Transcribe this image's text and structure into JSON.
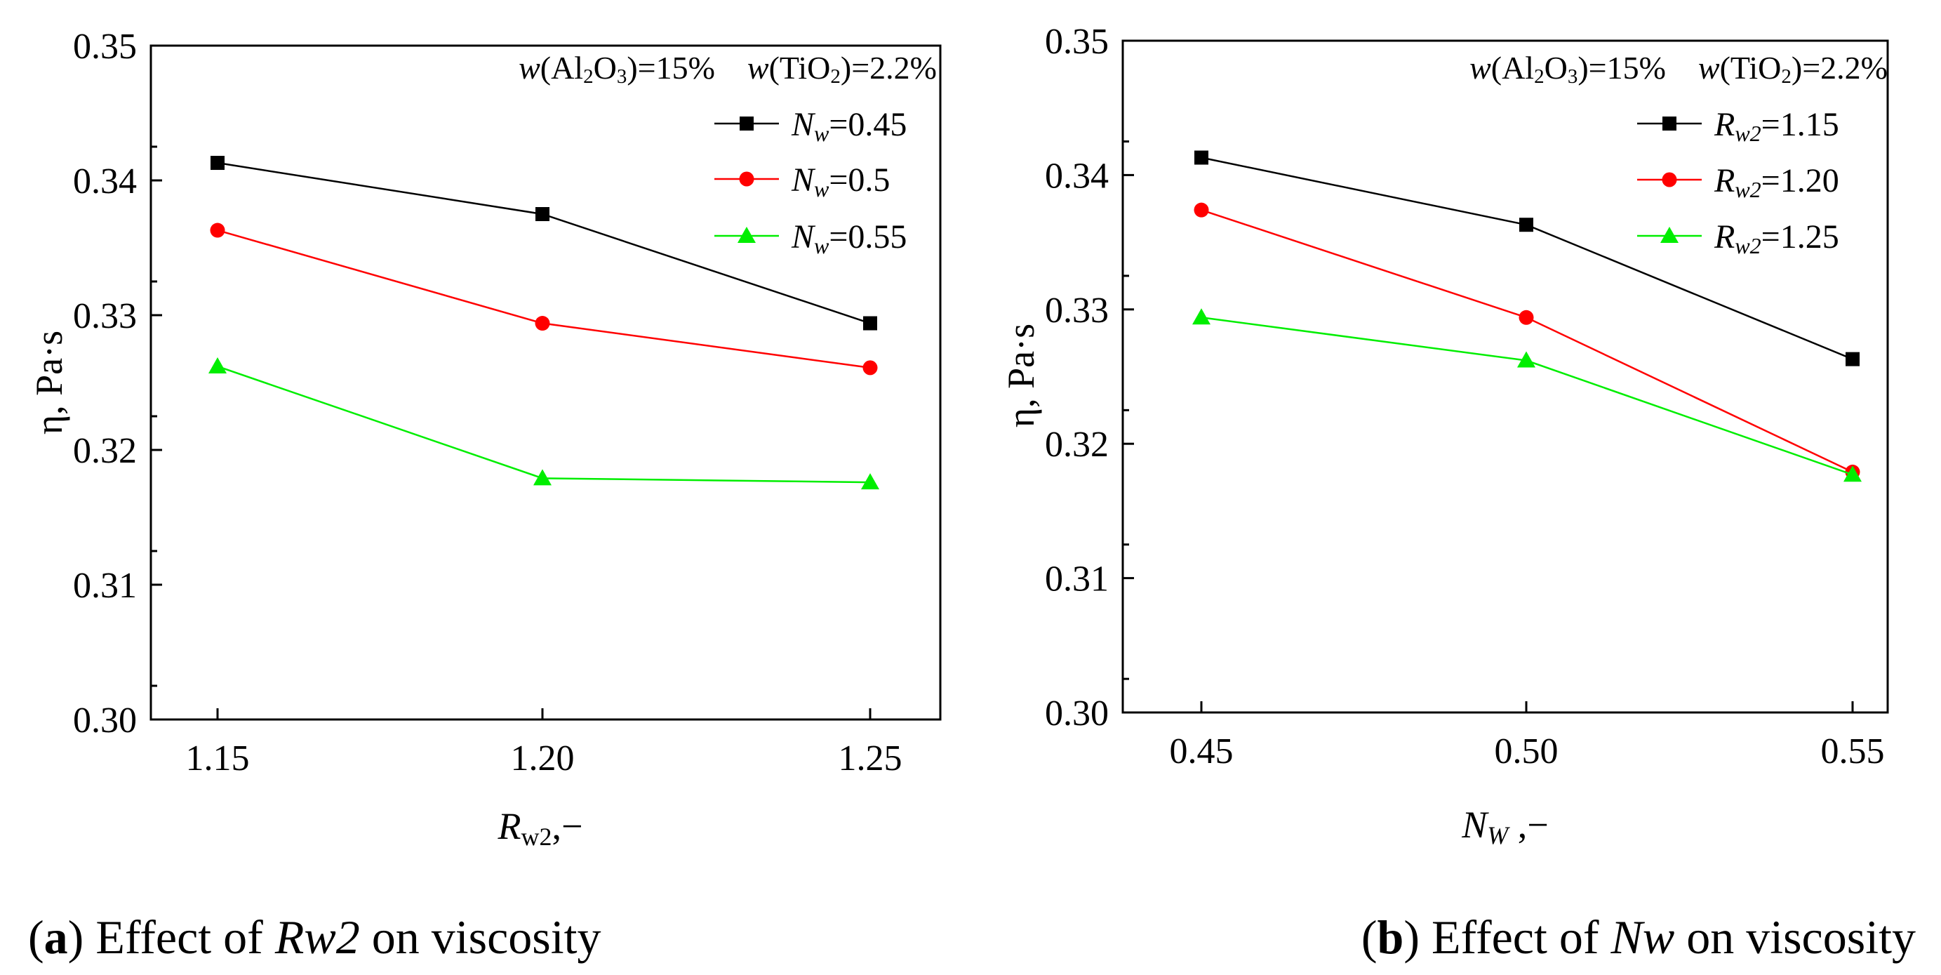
{
  "chart_data": [
    {
      "type": "line",
      "caption": {
        "label": "a",
        "prefix": "Effect of ",
        "variable": "Rw2",
        "suffix": " on viscosity"
      },
      "ylabel": "η, Pa·s",
      "xlabel": "R_w2,−",
      "xlabel_main": "R",
      "xlabel_sub": "w2",
      "xlabel_tail": ",−",
      "ylim": [
        0.3,
        0.35
      ],
      "yticks": [
        "0.30",
        "0.31",
        "0.32",
        "0.33",
        "0.34",
        "0.35"
      ],
      "categories": [
        "1.15",
        "1.20",
        "1.25"
      ],
      "conditions": "w(Al2O3)=15%  w(TiO2)=2.2%",
      "legend_position": "top-right",
      "series": [
        {
          "name": "Nw=0.45",
          "legend_var": "N",
          "legend_sub": "w",
          "legend_val": "=0.45",
          "marker": "square",
          "color": "#000000",
          "values": [
            0.3413,
            0.3375,
            0.3294
          ]
        },
        {
          "name": "Nw=0.5",
          "legend_var": "N",
          "legend_sub": "w",
          "legend_val": "=0.5",
          "marker": "circle",
          "color": "#ff0000",
          "values": [
            0.3363,
            0.3294,
            0.3261
          ]
        },
        {
          "name": "Nw=0.55",
          "legend_var": "N",
          "legend_sub": "w",
          "legend_val": "=0.55",
          "marker": "triangle",
          "color": "#00ee00",
          "values": [
            0.3262,
            0.3179,
            0.3176
          ]
        }
      ]
    },
    {
      "type": "line",
      "caption": {
        "label": "b",
        "prefix": "Effect of ",
        "variable": "Nw",
        "suffix": " on viscosity"
      },
      "ylabel": "η, Pa·s",
      "xlabel": "N_W,−",
      "xlabel_main": "N",
      "xlabel_sub": "W",
      "xlabel_tail": " ,−",
      "ylim": [
        0.3,
        0.35
      ],
      "yticks": [
        "0.30",
        "0.31",
        "0.32",
        "0.33",
        "0.34",
        "0.35"
      ],
      "categories": [
        "0.45",
        "0.50",
        "0.55"
      ],
      "conditions": "w(Al2O3)=15%  w(TiO2)=2.2%",
      "legend_position": "top-right",
      "series": [
        {
          "name": "Rw2=1.15",
          "legend_var": "R",
          "legend_sub": "w2",
          "legend_val": "=1.15",
          "marker": "square",
          "color": "#000000",
          "values": [
            0.3413,
            0.3363,
            0.3263
          ]
        },
        {
          "name": "Rw2=1.20",
          "legend_var": "R",
          "legend_sub": "w2",
          "legend_val": "=1.20",
          "marker": "circle",
          "color": "#ff0000",
          "values": [
            0.3374,
            0.3294,
            0.3179
          ]
        },
        {
          "name": "Rw2=1.25",
          "legend_var": "R",
          "legend_sub": "w2",
          "legend_val": "=1.25",
          "marker": "triangle",
          "color": "#00ee00",
          "values": [
            0.3294,
            0.3262,
            0.3177
          ]
        }
      ]
    }
  ]
}
